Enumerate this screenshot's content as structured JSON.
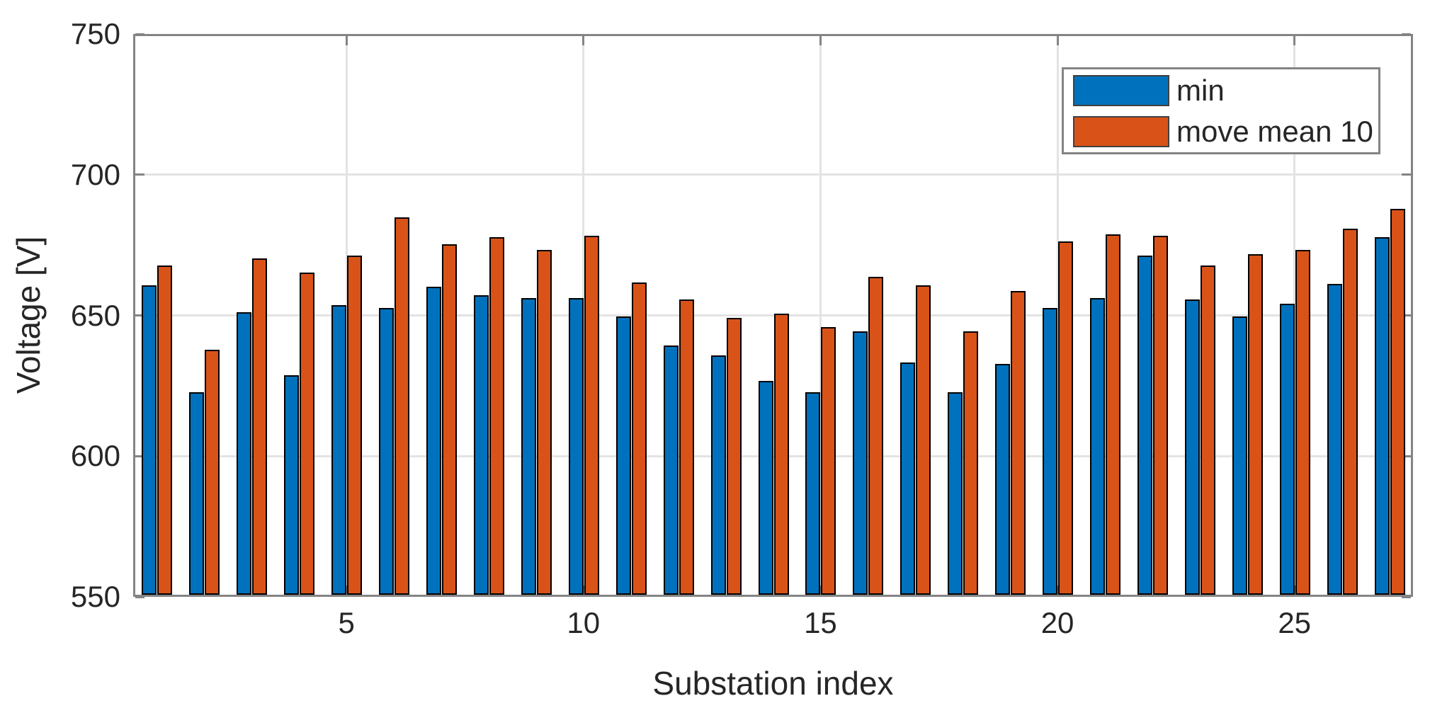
{
  "chart_data": {
    "type": "bar",
    "title": "",
    "xlabel": "Substation index",
    "ylabel": "Voltage [V]",
    "categories": [
      1,
      2,
      3,
      4,
      5,
      6,
      7,
      8,
      9,
      10,
      11,
      12,
      13,
      14,
      15,
      16,
      17,
      18,
      19,
      20,
      21,
      22,
      23,
      24,
      25,
      26,
      27
    ],
    "series": [
      {
        "name": "min",
        "color": "#0072BD",
        "values": [
          660,
          622,
          650.5,
          628,
          653,
          652,
          659.5,
          656.5,
          655.5,
          655.5,
          649,
          638.5,
          635,
          626,
          622,
          643.5,
          632.5,
          622,
          632,
          652,
          655.5,
          670.5,
          655,
          649,
          653.5,
          660.5,
          677
        ]
      },
      {
        "name": "move mean 10",
        "color": "#D95319",
        "values": [
          667,
          637,
          669.5,
          664.5,
          670.5,
          684,
          674.5,
          677,
          672.5,
          677.5,
          661,
          655,
          648.5,
          650,
          645,
          663,
          660,
          643.5,
          658,
          675.5,
          678,
          677.5,
          667,
          671,
          672.5,
          680,
          687
        ]
      }
    ],
    "ylim": [
      550,
      750
    ],
    "yticks": [
      550,
      600,
      650,
      700,
      750
    ],
    "xticks": [
      5,
      10,
      15,
      20,
      25
    ],
    "grid": true,
    "legend_position": "top-right",
    "axis_color": "#848484",
    "grid_color": "#E3E3E3",
    "bar_edge_color": "#000000"
  }
}
